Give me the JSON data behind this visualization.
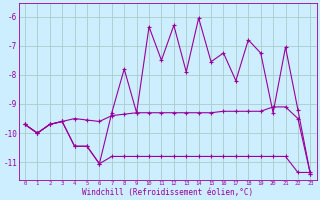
{
  "xlabel": "Windchill (Refroidissement éolien,°C)",
  "bg_color": "#cceeff",
  "line_color": "#990099",
  "grid_color": "#aacccc",
  "xlim": [
    -0.5,
    23.5
  ],
  "ylim": [
    -11.6,
    -5.55
  ],
  "yticks": [
    -11,
    -10,
    -9,
    -8,
    -7,
    -6
  ],
  "xticks": [
    0,
    1,
    2,
    3,
    4,
    5,
    6,
    7,
    8,
    9,
    10,
    11,
    12,
    13,
    14,
    15,
    16,
    17,
    18,
    19,
    20,
    21,
    22,
    23
  ],
  "line_mid_x": [
    0,
    1,
    2,
    3,
    4,
    5,
    6,
    7,
    8,
    9,
    10,
    11,
    12,
    13,
    14,
    15,
    16,
    17,
    18,
    19,
    20,
    21,
    22,
    23
  ],
  "line_mid_y": [
    -9.7,
    -10.0,
    -9.7,
    -9.6,
    -9.5,
    -9.55,
    -9.6,
    -9.4,
    -9.35,
    -9.3,
    -9.3,
    -9.3,
    -9.3,
    -9.3,
    -9.3,
    -9.3,
    -9.25,
    -9.25,
    -9.25,
    -9.25,
    -9.1,
    -9.1,
    -9.5,
    -11.4
  ],
  "line_bot_x": [
    0,
    1,
    2,
    3,
    4,
    5,
    6,
    7,
    8,
    9,
    10,
    11,
    12,
    13,
    14,
    15,
    16,
    17,
    18,
    19,
    20,
    21,
    22,
    23
  ],
  "line_bot_y": [
    -9.7,
    -10.0,
    -9.7,
    -9.6,
    -10.45,
    -10.45,
    -11.05,
    -10.8,
    -10.8,
    -10.8,
    -10.8,
    -10.8,
    -10.8,
    -10.8,
    -10.8,
    -10.8,
    -10.8,
    -10.8,
    -10.8,
    -10.8,
    -10.8,
    -10.8,
    -11.35,
    -11.35
  ],
  "line_top_x": [
    0,
    1,
    2,
    3,
    4,
    5,
    6,
    7,
    8,
    9,
    10,
    11,
    12,
    13,
    14,
    15,
    16,
    17,
    18,
    19,
    20,
    21,
    22,
    23
  ],
  "line_top_y": [
    -9.7,
    -10.0,
    -9.7,
    -9.6,
    -10.45,
    -10.45,
    -11.05,
    -9.3,
    -7.8,
    -9.3,
    -6.35,
    -7.5,
    -6.3,
    -7.9,
    -6.05,
    -7.55,
    -7.25,
    -8.2,
    -6.8,
    -7.25,
    -9.3,
    -7.05,
    -9.2,
    -11.4
  ]
}
